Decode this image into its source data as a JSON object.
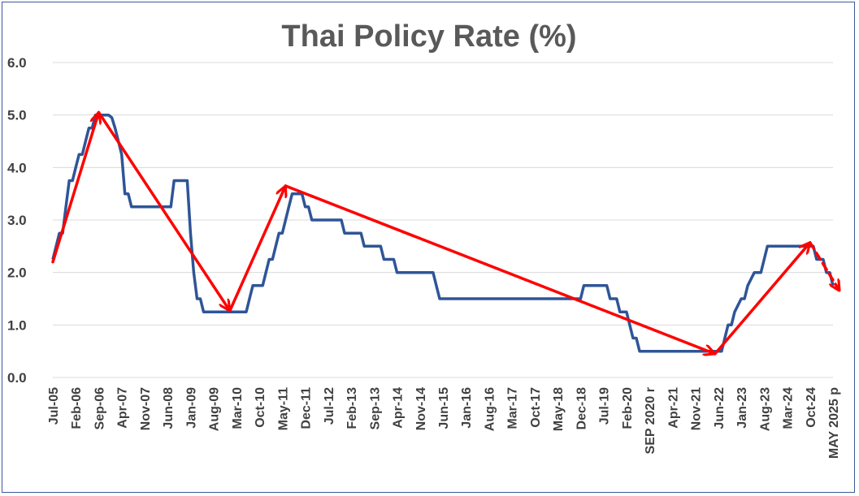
{
  "chart_data": {
    "type": "line",
    "title": "Thai Policy Rate (%)",
    "xlabel": "",
    "ylabel": "",
    "ylim": [
      0,
      6
    ],
    "yticks": [
      "0.0",
      "1.0",
      "2.0",
      "3.0",
      "4.0",
      "5.0",
      "6.0"
    ],
    "grid": true,
    "x_start": "2005-07",
    "x_end": "2025-05",
    "xtick_labels": [
      {
        "label": "Jul-05",
        "date": "2005-07"
      },
      {
        "label": "Feb-06",
        "date": "2006-02"
      },
      {
        "label": "Sep-06",
        "date": "2006-09"
      },
      {
        "label": "Apr-07",
        "date": "2007-04"
      },
      {
        "label": "Nov-07",
        "date": "2007-11"
      },
      {
        "label": "Jun-08",
        "date": "2008-06"
      },
      {
        "label": "Jan-09",
        "date": "2009-01"
      },
      {
        "label": "Aug-09",
        "date": "2009-08"
      },
      {
        "label": "Mar-10",
        "date": "2010-03"
      },
      {
        "label": "Oct-10",
        "date": "2010-10"
      },
      {
        "label": "May-11",
        "date": "2011-05"
      },
      {
        "label": "Dec-11",
        "date": "2011-12"
      },
      {
        "label": "Jul-12",
        "date": "2012-07"
      },
      {
        "label": "Feb-13",
        "date": "2013-02"
      },
      {
        "label": "Sep-13",
        "date": "2013-09"
      },
      {
        "label": "Apr-14",
        "date": "2014-04"
      },
      {
        "label": "Nov-14",
        "date": "2014-11"
      },
      {
        "label": "Jun-15",
        "date": "2015-06"
      },
      {
        "label": "Jan-16",
        "date": "2016-01"
      },
      {
        "label": "Aug-16",
        "date": "2016-08"
      },
      {
        "label": "Mar-17",
        "date": "2017-03"
      },
      {
        "label": "Oct-17",
        "date": "2017-10"
      },
      {
        "label": "May-18",
        "date": "2018-05"
      },
      {
        "label": "Dec-18",
        "date": "2018-12"
      },
      {
        "label": "Jul-19",
        "date": "2019-07"
      },
      {
        "label": "Feb-20",
        "date": "2020-02"
      },
      {
        "label": "SEP 2020 r",
        "date": "2020-09"
      },
      {
        "label": "Apr-21",
        "date": "2021-04"
      },
      {
        "label": "Nov-21",
        "date": "2021-11"
      },
      {
        "label": "Jun-22",
        "date": "2022-06"
      },
      {
        "label": "Jan-23",
        "date": "2023-01"
      },
      {
        "label": "Aug-23",
        "date": "2023-08"
      },
      {
        "label": "Mar-24",
        "date": "2024-03"
      },
      {
        "label": "Oct-24",
        "date": "2024-10"
      },
      {
        "label": "MAY 2025 p",
        "date": "2025-05"
      }
    ],
    "series": [
      {
        "name": "Thai Policy Rate",
        "color": "#2f5597",
        "points": [
          {
            "x": "2005-07",
            "y": 2.25
          },
          {
            "x": "2005-09",
            "y": 2.75
          },
          {
            "x": "2005-10",
            "y": 2.75
          },
          {
            "x": "2005-11",
            "y": 3.25
          },
          {
            "x": "2005-12",
            "y": 3.75
          },
          {
            "x": "2006-01",
            "y": 3.75
          },
          {
            "x": "2006-02",
            "y": 4.0
          },
          {
            "x": "2006-03",
            "y": 4.25
          },
          {
            "x": "2006-04",
            "y": 4.25
          },
          {
            "x": "2006-05",
            "y": 4.5
          },
          {
            "x": "2006-06",
            "y": 4.75
          },
          {
            "x": "2006-07",
            "y": 4.75
          },
          {
            "x": "2006-08",
            "y": 5.0
          },
          {
            "x": "2006-12",
            "y": 5.0
          },
          {
            "x": "2007-01",
            "y": 4.95
          },
          {
            "x": "2007-02",
            "y": 4.75
          },
          {
            "x": "2007-03",
            "y": 4.5
          },
          {
            "x": "2007-04",
            "y": 4.25
          },
          {
            "x": "2007-05",
            "y": 3.5
          },
          {
            "x": "2007-06",
            "y": 3.5
          },
          {
            "x": "2007-07",
            "y": 3.25
          },
          {
            "x": "2008-07",
            "y": 3.25
          },
          {
            "x": "2008-08",
            "y": 3.75
          },
          {
            "x": "2008-12",
            "y": 3.75
          },
          {
            "x": "2009-01",
            "y": 2.75
          },
          {
            "x": "2009-02",
            "y": 2.0
          },
          {
            "x": "2009-03",
            "y": 1.5
          },
          {
            "x": "2009-04",
            "y": 1.5
          },
          {
            "x": "2009-05",
            "y": 1.25
          },
          {
            "x": "2010-06",
            "y": 1.25
          },
          {
            "x": "2010-07",
            "y": 1.5
          },
          {
            "x": "2010-08",
            "y": 1.75
          },
          {
            "x": "2010-11",
            "y": 1.75
          },
          {
            "x": "2010-12",
            "y": 2.0
          },
          {
            "x": "2011-01",
            "y": 2.25
          },
          {
            "x": "2011-02",
            "y": 2.25
          },
          {
            "x": "2011-03",
            "y": 2.5
          },
          {
            "x": "2011-04",
            "y": 2.75
          },
          {
            "x": "2011-05",
            "y": 2.75
          },
          {
            "x": "2011-06",
            "y": 3.0
          },
          {
            "x": "2011-07",
            "y": 3.25
          },
          {
            "x": "2011-08",
            "y": 3.5
          },
          {
            "x": "2011-11",
            "y": 3.5
          },
          {
            "x": "2011-12",
            "y": 3.25
          },
          {
            "x": "2012-01",
            "y": 3.25
          },
          {
            "x": "2012-02",
            "y": 3.0
          },
          {
            "x": "2012-11",
            "y": 3.0
          },
          {
            "x": "2012-12",
            "y": 2.75
          },
          {
            "x": "2013-05",
            "y": 2.75
          },
          {
            "x": "2013-06",
            "y": 2.5
          },
          {
            "x": "2013-11",
            "y": 2.5
          },
          {
            "x": "2013-12",
            "y": 2.25
          },
          {
            "x": "2014-03",
            "y": 2.25
          },
          {
            "x": "2014-04",
            "y": 2.0
          },
          {
            "x": "2015-03",
            "y": 2.0
          },
          {
            "x": "2015-04",
            "y": 1.75
          },
          {
            "x": "2015-05",
            "y": 1.5
          },
          {
            "x": "2018-12",
            "y": 1.5
          },
          {
            "x": "2019-01",
            "y": 1.75
          },
          {
            "x": "2019-08",
            "y": 1.75
          },
          {
            "x": "2019-09",
            "y": 1.5
          },
          {
            "x": "2019-11",
            "y": 1.5
          },
          {
            "x": "2019-12",
            "y": 1.25
          },
          {
            "x": "2020-02",
            "y": 1.25
          },
          {
            "x": "2020-03",
            "y": 1.0
          },
          {
            "x": "2020-04",
            "y": 0.75
          },
          {
            "x": "2020-05",
            "y": 0.75
          },
          {
            "x": "2020-06",
            "y": 0.5
          },
          {
            "x": "2022-07",
            "y": 0.5
          },
          {
            "x": "2022-08",
            "y": 0.75
          },
          {
            "x": "2022-09",
            "y": 1.0
          },
          {
            "x": "2022-10",
            "y": 1.0
          },
          {
            "x": "2022-11",
            "y": 1.25
          },
          {
            "x": "2023-01",
            "y": 1.5
          },
          {
            "x": "2023-02",
            "y": 1.5
          },
          {
            "x": "2023-03",
            "y": 1.75
          },
          {
            "x": "2023-05",
            "y": 2.0
          },
          {
            "x": "2023-07",
            "y": 2.0
          },
          {
            "x": "2023-08",
            "y": 2.25
          },
          {
            "x": "2023-09",
            "y": 2.5
          },
          {
            "x": "2024-11",
            "y": 2.5
          },
          {
            "x": "2024-12",
            "y": 2.25
          },
          {
            "x": "2025-02",
            "y": 2.25
          },
          {
            "x": "2025-03",
            "y": 2.0
          },
          {
            "x": "2025-04",
            "y": 2.0
          },
          {
            "x": "2025-05",
            "y": 1.75
          }
        ]
      }
    ],
    "annotations": {
      "color": "#ff0000",
      "trend_arrows": [
        {
          "from": {
            "x": "2005-07",
            "y": 2.2
          },
          "to": {
            "x": "2006-09",
            "y": 5.05
          },
          "style": "solid"
        },
        {
          "from": {
            "x": "2006-09",
            "y": 5.05
          },
          "to": {
            "x": "2010-01",
            "y": 1.27
          },
          "style": "solid"
        },
        {
          "from": {
            "x": "2010-01",
            "y": 1.27
          },
          "to": {
            "x": "2011-06",
            "y": 3.65
          },
          "style": "solid"
        },
        {
          "from": {
            "x": "2011-06",
            "y": 3.65
          },
          "to": {
            "x": "2022-05",
            "y": 0.45
          },
          "style": "solid"
        },
        {
          "from": {
            "x": "2022-05",
            "y": 0.45
          },
          "to": {
            "x": "2024-10",
            "y": 2.57
          },
          "style": "solid"
        },
        {
          "from": {
            "x": "2024-10",
            "y": 2.57
          },
          "to": {
            "x": "2025-07",
            "y": 1.65
          },
          "style": "dashed"
        }
      ]
    }
  }
}
